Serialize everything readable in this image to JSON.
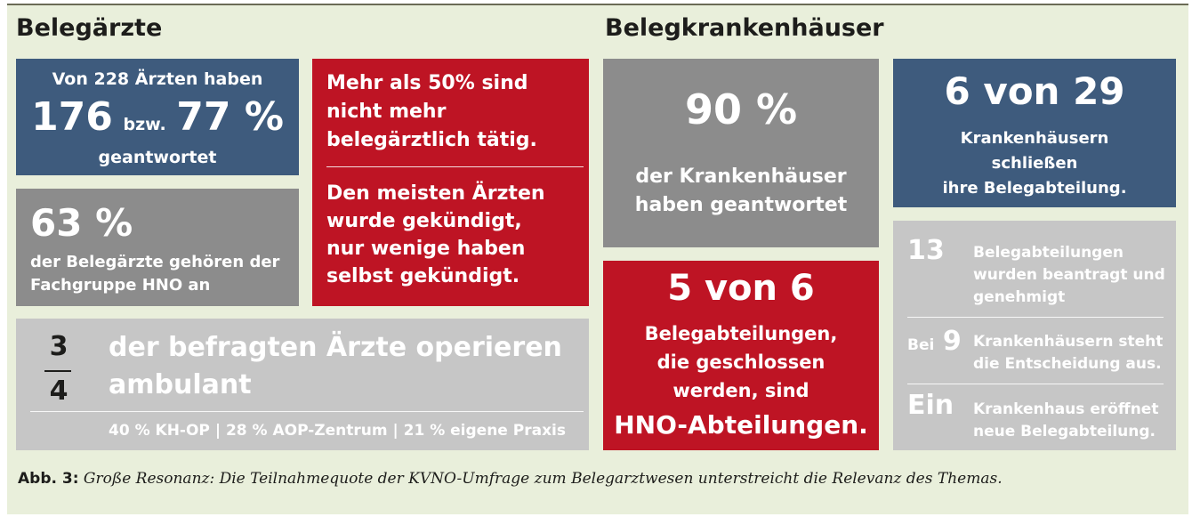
{
  "belegaerzte": {
    "heading": "Belegärzte",
    "response": {
      "line1": "Von 228 Ärzten haben",
      "count": "176",
      "conj": "bzw.",
      "percent": "77 %",
      "line3": "geantwortet"
    },
    "hno": {
      "big": "63 %",
      "text1": "der Belegärzte gehören der",
      "text2": "Fachgruppe HNO an"
    },
    "status": {
      "p1l1": "Mehr als 50% sind",
      "p1l2": "nicht mehr",
      "p1l3": "belegärztlich tätig.",
      "p2l1": "Den meisten Ärzten",
      "p2l2": "wurde gekündigt,",
      "p2l3": "nur wenige haben",
      "p2l4": "selbst gekündigt."
    },
    "ambulant": {
      "num": "3",
      "den": "4",
      "line1": "der befragten Ärzte operieren",
      "line2": "ambulant",
      "breakdown": "40 % KH-OP | 28 % AOP-Zentrum | 21 % eigene Praxis"
    }
  },
  "belegkrankenhaeuser": {
    "heading": "Belegkrankenhäuser",
    "response": {
      "big": "90 %",
      "line1": "der Krankenhäuser",
      "line2": "haben geantwortet"
    },
    "closing": {
      "big": "6 von 29",
      "line1": "Krankenhäusern",
      "line2": "schließen",
      "line3": "ihre Belegabteilung."
    },
    "hno_closed": {
      "big": "5 von 6",
      "line1": "Belegabteilungen,",
      "line2": "die geschlossen",
      "line3": "werden, sind",
      "line4": "HNO-Abteilungen."
    },
    "details": {
      "r1_num": "13",
      "r1_l1": "Belegabteilungen",
      "r1_l2": "wurden beantragt und",
      "r1_l3": "genehmigt",
      "r2_pre": "Bei",
      "r2_num": "9",
      "r2_l1": "Krankenhäusern steht",
      "r2_l2": "die Entscheidung aus.",
      "r3_num": "Ein",
      "r3_l1": "Krankenhaus eröffnet",
      "r3_l2": "neue Belegabteilung."
    }
  },
  "caption": {
    "label": "Abb. 3:",
    "text": "Große Resonanz: Die Teilnahmequote der KVNO-Umfrage zum Belegarztwesen unterstreicht die Relevanz des Themas."
  }
}
